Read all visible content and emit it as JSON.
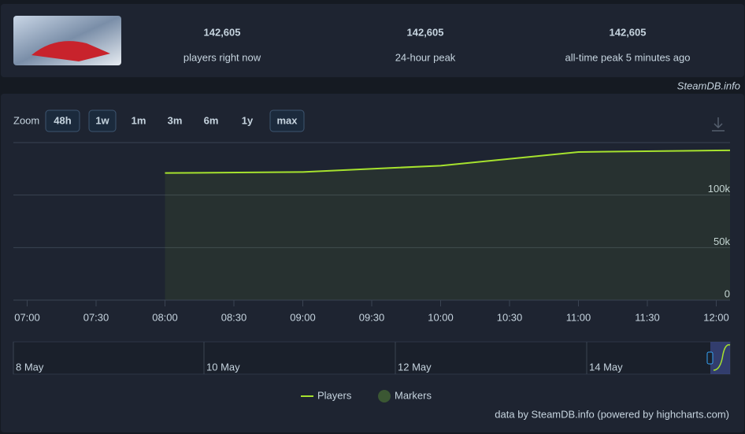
{
  "header": {
    "stats": [
      {
        "value": "142,605",
        "label": "players right now"
      },
      {
        "value": "142,605",
        "label": "24-hour peak"
      },
      {
        "value": "142,605",
        "label": "all-time peak 5 minutes ago"
      }
    ]
  },
  "watermark": "SteamDB.info",
  "zoom": {
    "label": "Zoom",
    "buttons": [
      "48h",
      "1w",
      "1m",
      "3m",
      "6m",
      "1y",
      "max"
    ],
    "active": [
      "48h",
      "1w",
      "max"
    ]
  },
  "chart_data": {
    "type": "line",
    "x": [
      480,
      540,
      600,
      660,
      720,
      726
    ],
    "series": [
      {
        "name": "Players",
        "color": "#a6e22e",
        "values": [
          121000,
          122000,
          128000,
          141000,
          142500,
          142605
        ]
      },
      {
        "name": "Markers",
        "color": "#3b5733",
        "values": [
          null,
          null,
          null,
          null,
          null,
          null
        ]
      }
    ],
    "xlim": [
      414,
      726
    ],
    "xticks": [
      {
        "value": 420,
        "label": "07:00"
      },
      {
        "value": 450,
        "label": "07:30"
      },
      {
        "value": 480,
        "label": "08:00"
      },
      {
        "value": 510,
        "label": "08:30"
      },
      {
        "value": 540,
        "label": "09:00"
      },
      {
        "value": 570,
        "label": "09:30"
      },
      {
        "value": 600,
        "label": "10:00"
      },
      {
        "value": 630,
        "label": "10:30"
      },
      {
        "value": 660,
        "label": "11:00"
      },
      {
        "value": 690,
        "label": "11:30"
      },
      {
        "value": 720,
        "label": "12:00"
      }
    ],
    "ylim": [
      0,
      150000
    ],
    "yticks": [
      0,
      {
        "value": 50000,
        "label": "50k"
      },
      {
        "value": 100000,
        "label": "100k"
      }
    ],
    "grid": true
  },
  "navigator": {
    "labels": [
      "8 May",
      "10 May",
      "12 May",
      "14 May"
    ]
  },
  "credits": "data by SteamDB.info (powered by highcharts.com)"
}
